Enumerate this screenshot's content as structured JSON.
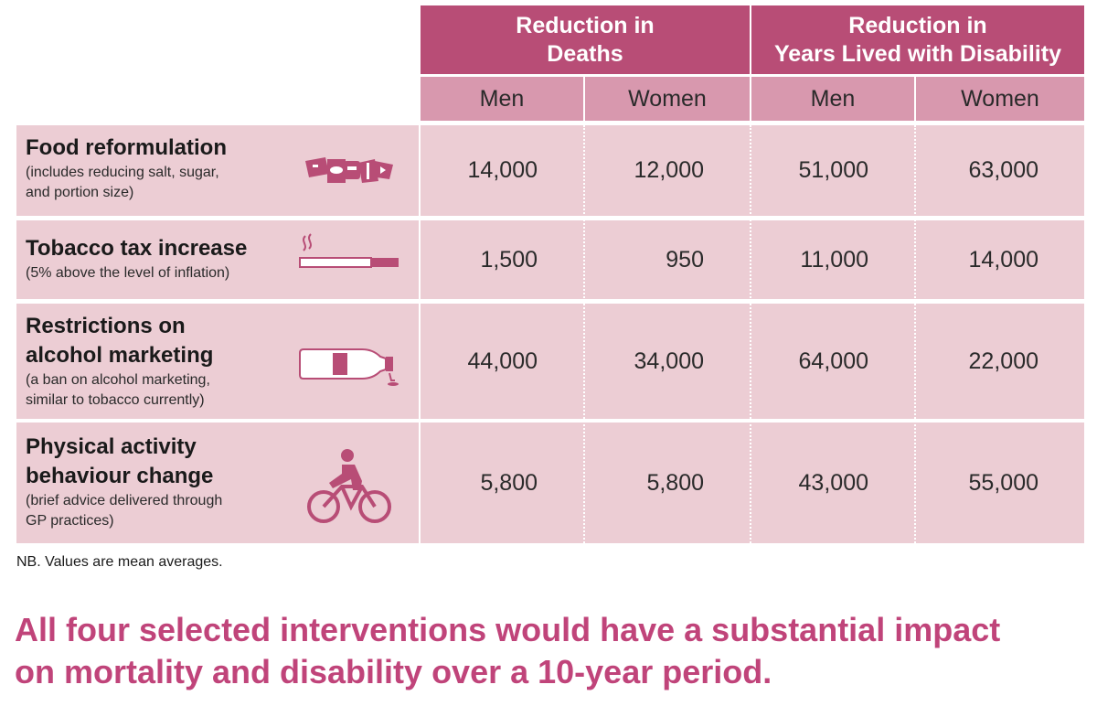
{
  "chart_data": {
    "type": "table",
    "column_groups": [
      {
        "label_line1": "Reduction in",
        "label_line2": "Deaths",
        "columns": [
          "Men",
          "Women"
        ]
      },
      {
        "label_line1": "Reduction in",
        "label_line2": "Years Lived with Disability",
        "columns": [
          "Men",
          "Women"
        ]
      }
    ],
    "rows": [
      {
        "title_lines": [
          "Food reformulation"
        ],
        "subtitle_lines": [
          "(includes reducing salt, sugar,",
          "and portion size)"
        ],
        "icon": "food-packages-icon",
        "values": [
          "14,000",
          "12,000",
          "51,000",
          "63,000"
        ]
      },
      {
        "title_lines": [
          "Tobacco tax increase"
        ],
        "subtitle_lines": [
          "(5% above the level of inflation)"
        ],
        "icon": "cigarette-icon",
        "values": [
          "1,500",
          "950",
          "11,000",
          "14,000"
        ]
      },
      {
        "title_lines": [
          "Restrictions on",
          "alcohol marketing"
        ],
        "subtitle_lines": [
          "(a ban on alcohol marketing,",
          "similar to tobacco currently)"
        ],
        "icon": "wine-bottle-icon",
        "values": [
          "44,000",
          "34,000",
          "64,000",
          "22,000"
        ]
      },
      {
        "title_lines": [
          "Physical activity",
          "behaviour change"
        ],
        "subtitle_lines": [
          "(brief advice delivered through",
          "GP practices)"
        ],
        "icon": "cyclist-icon",
        "values": [
          "5,800",
          "5,800",
          "43,000",
          "55,000"
        ]
      }
    ],
    "note": "NB. Values are mean averages.",
    "headline_lines": [
      "All four selected interventions would have a substantial impact",
      "on mortality and disability over a 10-year period."
    ]
  },
  "colors": {
    "header_group": "#b84d76",
    "header_sub": "#d898ae",
    "row_bg": "#eccdd4",
    "icon": "#b84d76",
    "headline": "#c0447a"
  }
}
